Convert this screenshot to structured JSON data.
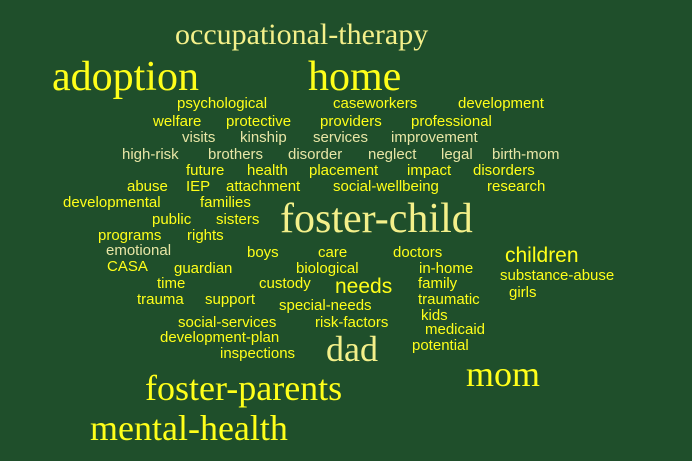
{
  "words": [
    {
      "text": "occupational-therapy",
      "tone": "ly"
    },
    {
      "text": "adoption",
      "tone": "y"
    },
    {
      "text": "home",
      "tone": "y"
    },
    {
      "text": "psychological",
      "tone": "y"
    },
    {
      "text": "caseworkers",
      "tone": "y"
    },
    {
      "text": "development",
      "tone": "y"
    },
    {
      "text": "welfare",
      "tone": "y"
    },
    {
      "text": "protective",
      "tone": "y"
    },
    {
      "text": "providers",
      "tone": "y"
    },
    {
      "text": "professional",
      "tone": "y"
    },
    {
      "text": "visits",
      "tone": "pale"
    },
    {
      "text": "kinship",
      "tone": "pale"
    },
    {
      "text": "services",
      "tone": "pale"
    },
    {
      "text": "improvement",
      "tone": "pale"
    },
    {
      "text": "high-risk",
      "tone": "pale"
    },
    {
      "text": "brothers",
      "tone": "pale"
    },
    {
      "text": "disorder",
      "tone": "pale"
    },
    {
      "text": "neglect",
      "tone": "pale"
    },
    {
      "text": "legal",
      "tone": "pale"
    },
    {
      "text": "birth-mom",
      "tone": "pale"
    },
    {
      "text": "future",
      "tone": "y"
    },
    {
      "text": "health",
      "tone": "y"
    },
    {
      "text": "placement",
      "tone": "y"
    },
    {
      "text": "impact",
      "tone": "y"
    },
    {
      "text": "disorders",
      "tone": "y"
    },
    {
      "text": "abuse",
      "tone": "y"
    },
    {
      "text": "IEP",
      "tone": "y"
    },
    {
      "text": "attachment",
      "tone": "y"
    },
    {
      "text": "social-wellbeing",
      "tone": "y"
    },
    {
      "text": "research",
      "tone": "y"
    },
    {
      "text": "developmental",
      "tone": "y"
    },
    {
      "text": "families",
      "tone": "y"
    },
    {
      "text": "foster-child",
      "tone": "ly"
    },
    {
      "text": "public",
      "tone": "y"
    },
    {
      "text": "sisters",
      "tone": "y"
    },
    {
      "text": "programs",
      "tone": "y"
    },
    {
      "text": "rights",
      "tone": "y"
    },
    {
      "text": "emotional",
      "tone": "pale"
    },
    {
      "text": "boys",
      "tone": "y"
    },
    {
      "text": "care",
      "tone": "y"
    },
    {
      "text": "doctors",
      "tone": "y"
    },
    {
      "text": "children",
      "tone": "y"
    },
    {
      "text": "CASA",
      "tone": "y"
    },
    {
      "text": "guardian",
      "tone": "y"
    },
    {
      "text": "biological",
      "tone": "y"
    },
    {
      "text": "in-home",
      "tone": "y"
    },
    {
      "text": "substance-abuse",
      "tone": "y"
    },
    {
      "text": "time",
      "tone": "y"
    },
    {
      "text": "custody",
      "tone": "y"
    },
    {
      "text": "needs",
      "tone": "y"
    },
    {
      "text": "family",
      "tone": "y"
    },
    {
      "text": "girls",
      "tone": "y"
    },
    {
      "text": "trauma",
      "tone": "y"
    },
    {
      "text": "support",
      "tone": "y"
    },
    {
      "text": "traumatic",
      "tone": "y"
    },
    {
      "text": "special-needs",
      "tone": "y"
    },
    {
      "text": "kids",
      "tone": "y"
    },
    {
      "text": "social-services",
      "tone": "y"
    },
    {
      "text": "risk-factors",
      "tone": "y"
    },
    {
      "text": "medicaid",
      "tone": "y"
    },
    {
      "text": "development-plan",
      "tone": "y"
    },
    {
      "text": "dad",
      "tone": "ly"
    },
    {
      "text": "potential",
      "tone": "y"
    },
    {
      "text": "inspections",
      "tone": "y"
    },
    {
      "text": "mom",
      "tone": "y"
    },
    {
      "text": "foster-parents",
      "tone": "y"
    },
    {
      "text": "mental-health",
      "tone": "y"
    }
  ]
}
